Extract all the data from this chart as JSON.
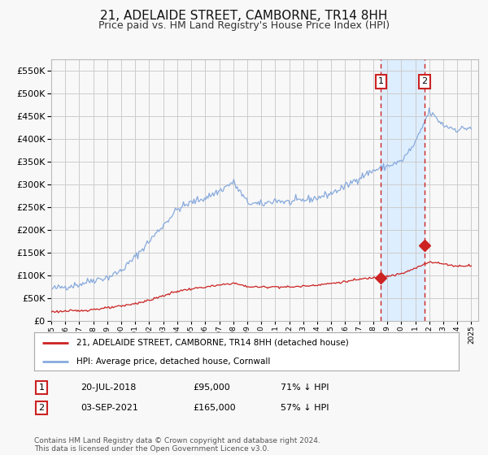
{
  "title": "21, ADELAIDE STREET, CAMBORNE, TR14 8HH",
  "subtitle": "Price paid vs. HM Land Registry's House Price Index (HPI)",
  "title_fontsize": 11,
  "subtitle_fontsize": 9,
  "background_color": "#f8f8f8",
  "plot_bg_color": "#f8f8f8",
  "grid_color": "#cccccc",
  "hpi_color": "#88aadd",
  "price_color": "#cc2222",
  "highlight_bg": "#ddeeff",
  "sale1_date": 2018.55,
  "sale1_price": 95000,
  "sale2_date": 2021.67,
  "sale2_price": 165000,
  "legend_line1": "21, ADELAIDE STREET, CAMBORNE, TR14 8HH (detached house)",
  "legend_line2": "HPI: Average price, detached house, Cornwall",
  "table_row1": [
    "1",
    "20-JUL-2018",
    "£95,000",
    "71% ↓ HPI"
  ],
  "table_row2": [
    "2",
    "03-SEP-2021",
    "£165,000",
    "57% ↓ HPI"
  ],
  "footer": "Contains HM Land Registry data © Crown copyright and database right 2024.\nThis data is licensed under the Open Government Licence v3.0.",
  "ylim": [
    0,
    575000
  ],
  "yticks": [
    0,
    50000,
    100000,
    150000,
    200000,
    250000,
    300000,
    350000,
    400000,
    450000,
    500000,
    550000
  ],
  "xlim_start": 1995,
  "xlim_end": 2025.5
}
